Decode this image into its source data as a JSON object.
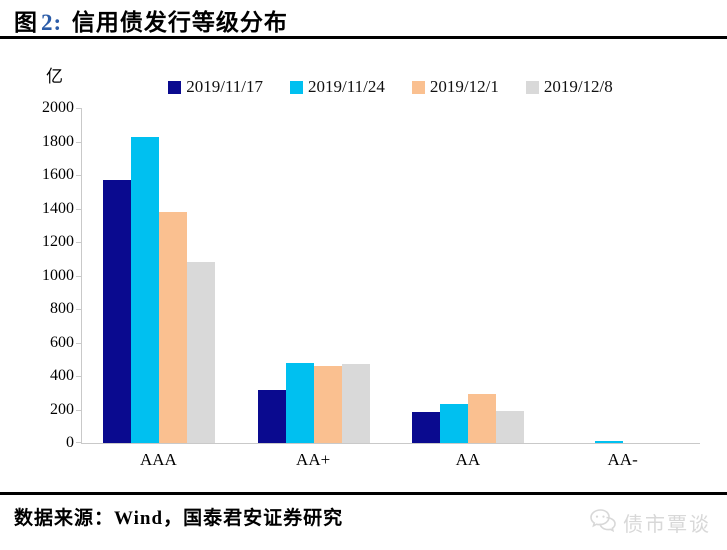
{
  "header": {
    "title_prefix": "图",
    "title_number": "2:",
    "title_text": "信用债发行等级分布",
    "title_number_color": "#2B5CA8"
  },
  "chart_data": {
    "type": "bar",
    "title": "信用债发行等级分布",
    "unit_label": "亿",
    "xlabel": "",
    "ylabel": "亿",
    "ylim": [
      0,
      2000
    ],
    "ytick_step": 200,
    "grid": false,
    "legend_position": "top",
    "categories": [
      "AAA",
      "AA+",
      "AA",
      "AA-"
    ],
    "series": [
      {
        "name": "2019/11/17",
        "color": "#0A0A8F",
        "values": [
          1570,
          315,
          185,
          0
        ]
      },
      {
        "name": "2019/11/24",
        "color": "#00C0F0",
        "values": [
          1825,
          480,
          235,
          15
        ]
      },
      {
        "name": "2019/12/1",
        "color": "#FAC090",
        "values": [
          1380,
          460,
          290,
          0
        ]
      },
      {
        "name": "2019/12/8",
        "color": "#D9D9D9",
        "values": [
          1080,
          470,
          190,
          0
        ]
      }
    ],
    "axis_color": "#C9C9C9"
  },
  "footer": {
    "source": "数据来源：Wind，国泰君安证券研究",
    "watermark": "债市覃谈"
  }
}
